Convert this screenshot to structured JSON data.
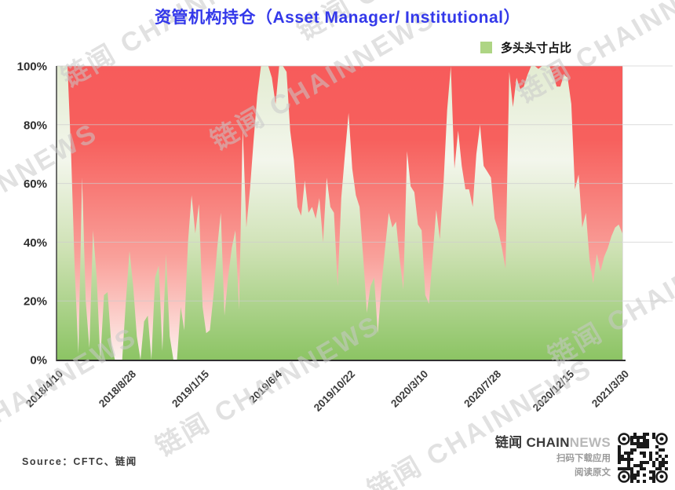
{
  "title": "资管机构持仓（Asset Manager/ Institutional）",
  "legend": {
    "label": "多头头寸占比",
    "swatch_color": "#aed584"
  },
  "watermark_text": "链闻 CHAINNEWS",
  "source_label": "Source：CFTC、链闻",
  "footer": {
    "brand_zh": "链闻",
    "brand_en_dark": "CHAIN",
    "brand_en_light": "NEWS",
    "scan_text": "扫码下载应用",
    "read_text": "阅读原文"
  },
  "colors": {
    "title": "#3338ea",
    "axis_text": "#2e2e2e",
    "x_label_text": "#3b3b3b",
    "axis_line": "#2f2f2f",
    "gridline": "rgba(205,205,205,0.7)",
    "red_gradient": [
      "#f75b5b",
      "#f7605d",
      "#f9a09a",
      "#fdf1ee"
    ],
    "green_gradient": [
      "#e3ecd2",
      "#f3f6ec",
      "#cfe2b5",
      "#8cc464"
    ]
  },
  "chart_data": {
    "type": "area",
    "title": "资管机构持仓（Asset Manager/ Institutional）",
    "xlabel": "",
    "ylabel": "",
    "unit": "%",
    "ylim": [
      0,
      100
    ],
    "x_frequency": "weekly CFTC reports, 2018/4/10 - 2021/3/30",
    "legend_position": "top-right",
    "x_tick_rotation": -45,
    "grid": true,
    "y_ticks": [
      "100%",
      "80%",
      "60%",
      "40%",
      "20%",
      "0%"
    ],
    "y_tick_values": [
      100,
      80,
      60,
      40,
      20,
      0
    ],
    "x_tick_labels": [
      "2018/4/10",
      "2018/8/28",
      "2019/1/15",
      "2019/6/4",
      "2019/10/22",
      "2020/3/10",
      "2020/7/28",
      "2020/12/15",
      "2021/3/30"
    ],
    "x_tick_indices": [
      0,
      20,
      40,
      60,
      80,
      100,
      120,
      140,
      155
    ],
    "series": [
      {
        "name": "多头头寸占比",
        "fill": "green gradient (area below line)",
        "background_above_line": "red gradient (short side remainder to 100%)",
        "values": [
          100,
          100,
          100,
          100,
          70,
          30,
          2,
          62,
          20,
          4,
          44,
          28,
          0,
          22,
          23,
          5,
          0,
          0,
          0,
          20,
          37,
          25,
          8,
          0,
          13,
          15,
          0,
          28,
          32,
          3,
          36,
          8,
          0,
          0,
          18,
          10,
          40,
          56,
          43,
          53,
          18,
          9,
          10,
          22,
          38,
          50,
          15,
          28,
          38,
          44,
          17,
          79,
          45,
          58,
          75,
          90,
          100,
          100,
          100,
          96,
          87,
          100,
          100,
          98,
          78,
          68,
          52,
          49,
          61,
          50,
          52,
          48,
          55,
          40,
          62,
          52,
          50,
          25,
          55,
          70,
          84,
          65,
          56,
          52,
          35,
          16,
          25,
          28,
          9,
          25,
          38,
          50,
          45,
          47,
          34,
          24,
          71,
          59,
          57,
          46,
          44,
          22,
          19,
          35,
          51,
          41,
          60,
          85,
          100,
          65,
          78,
          66,
          58,
          58,
          52,
          70,
          80,
          66,
          64,
          62,
          48,
          44,
          38,
          31,
          98,
          86,
          96,
          92,
          93,
          97,
          100,
          100,
          99,
          100,
          100,
          100,
          97,
          93,
          93,
          97,
          96,
          87,
          58,
          63,
          45,
          50,
          34,
          26,
          36,
          30,
          35,
          38,
          42,
          45,
          46,
          43
        ]
      }
    ]
  }
}
